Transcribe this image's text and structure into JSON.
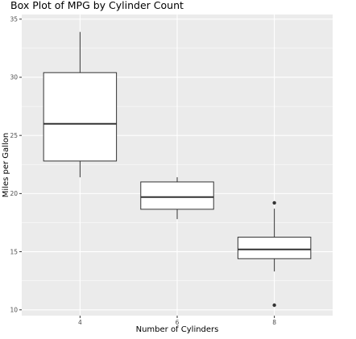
{
  "chart_data": {
    "type": "box",
    "title": "Box Plot of MPG by Cylinder Count",
    "xlabel": "Number of Cylinders",
    "ylabel": "Miles per Gallon",
    "ylim": [
      9.5,
      35.4
    ],
    "y_ticks": [
      10,
      15,
      20,
      25,
      30,
      35
    ],
    "grid": true,
    "colors": {
      "panel": "#ebebeb",
      "grid": "#ffffff",
      "box_fill": "#ffffff",
      "box_stroke": "#333333",
      "tick_label": "#4d4d4d"
    },
    "categories": [
      "4",
      "6",
      "8"
    ],
    "boxes": [
      {
        "category": "4",
        "whisker_low": 21.4,
        "q1": 22.8,
        "median": 26.0,
        "q3": 30.4,
        "whisker_high": 33.9,
        "outliers": []
      },
      {
        "category": "6",
        "whisker_low": 17.8,
        "q1": 18.65,
        "median": 19.7,
        "q3": 21.0,
        "whisker_high": 21.4,
        "outliers": []
      },
      {
        "category": "8",
        "whisker_low": 13.3,
        "q1": 14.4,
        "median": 15.2,
        "q3": 16.25,
        "whisker_high": 18.7,
        "outliers": [
          10.4,
          19.2
        ]
      }
    ]
  }
}
